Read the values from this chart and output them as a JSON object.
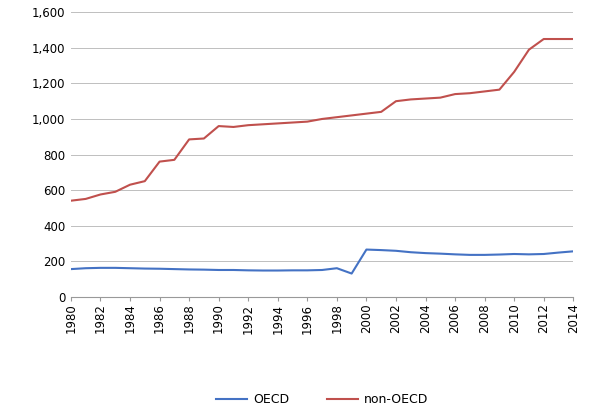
{
  "years": [
    1980,
    1981,
    1982,
    1983,
    1984,
    1985,
    1986,
    1987,
    1988,
    1989,
    1990,
    1991,
    1992,
    1993,
    1994,
    1995,
    1996,
    1997,
    1998,
    1999,
    2000,
    2001,
    2002,
    2003,
    2004,
    2005,
    2006,
    2007,
    2008,
    2009,
    2010,
    2011,
    2012,
    2013,
    2014
  ],
  "oecd": [
    155,
    160,
    162,
    162,
    160,
    158,
    157,
    155,
    153,
    152,
    150,
    150,
    148,
    147,
    147,
    148,
    148,
    150,
    160,
    130,
    265,
    262,
    258,
    250,
    245,
    242,
    238,
    235,
    235,
    237,
    240,
    238,
    240,
    248,
    255
  ],
  "non_oecd": [
    540,
    550,
    575,
    590,
    630,
    650,
    760,
    770,
    885,
    890,
    960,
    955,
    965,
    970,
    975,
    980,
    985,
    1000,
    1010,
    1020,
    1030,
    1040,
    1100,
    1110,
    1115,
    1120,
    1140,
    1145,
    1155,
    1165,
    1265,
    1390,
    1450,
    1450,
    1450
  ],
  "oecd_color": "#4472c4",
  "non_oecd_color": "#c0504d",
  "background_color": "#ffffff",
  "grid_color": "#bfbfbf",
  "ylim": [
    0,
    1600
  ],
  "yticks": [
    0,
    200,
    400,
    600,
    800,
    1000,
    1200,
    1400,
    1600
  ],
  "ytick_labels": [
    "0",
    "200",
    "400",
    "600",
    "800",
    "1,000",
    "1,200",
    "1,400",
    "1,600"
  ],
  "xticks": [
    1980,
    1982,
    1984,
    1986,
    1988,
    1990,
    1992,
    1994,
    1996,
    1998,
    2000,
    2002,
    2004,
    2006,
    2008,
    2010,
    2012,
    2014
  ],
  "legend_oecd": "OECD",
  "legend_non_oecd": "non-OECD",
  "line_width": 1.5
}
